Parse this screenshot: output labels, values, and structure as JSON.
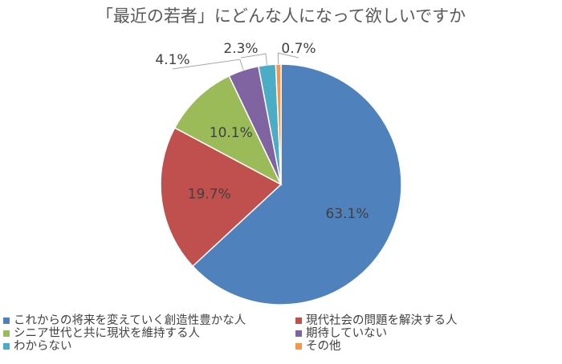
{
  "chart_data": {
    "type": "pie",
    "title": "「最近の若者」にどんな人になって欲しいですか",
    "slices": [
      {
        "label": "これからの将来を変えていく創造性豊かな人",
        "value": 63.1,
        "value_label": "63.1%",
        "color": "#4f81bd"
      },
      {
        "label": "現代社会の問題を解決する人",
        "value": 19.7,
        "value_label": "19.7%",
        "color": "#c0504d"
      },
      {
        "label": "シニア世代と共に現状を維持する人",
        "value": 10.1,
        "value_label": "10.1%",
        "color": "#9bbb59"
      },
      {
        "label": "期待していない",
        "value": 4.1,
        "value_label": "4.1%",
        "color": "#8064a2"
      },
      {
        "label": "わからない",
        "value": 2.3,
        "value_label": "2.3%",
        "color": "#4bacc6"
      },
      {
        "label": "その他",
        "value": 0.7,
        "value_label": "0.7%",
        "color": "#f79646"
      }
    ],
    "legend_placement": "bottom"
  }
}
